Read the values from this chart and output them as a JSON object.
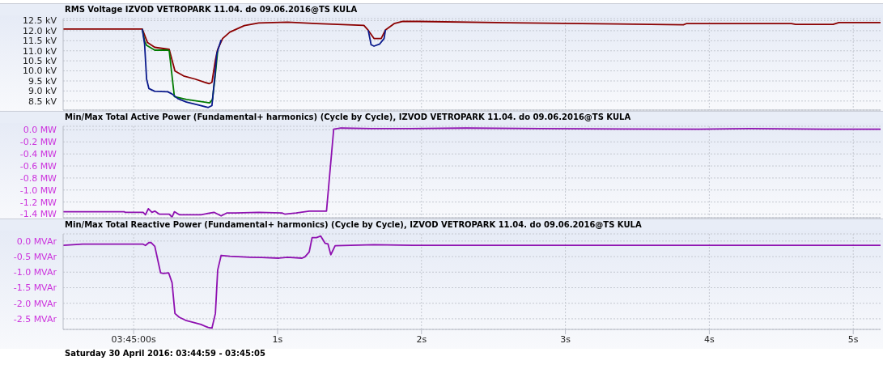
{
  "chart_data": [
    {
      "type": "line",
      "title": "RMS Voltage IZVOD VETROPARK 11.04. do 09.06.2016@TS KULA",
      "xlim": [
        -0.49,
        5.19
      ],
      "xticks": [
        0,
        1,
        2,
        3,
        4,
        5
      ],
      "ylim": [
        8.05,
        12.6
      ],
      "yticks": [
        {
          "value": 8.5,
          "label": "8.5 kV"
        },
        {
          "value": 9,
          "label": "9.0 kV"
        },
        {
          "value": 9.5,
          "label": "9.5 kV"
        },
        {
          "value": 10,
          "label": "10.0 kV"
        },
        {
          "value": 10.5,
          "label": "10.5 kV"
        },
        {
          "value": 11,
          "label": "11.0 kV"
        },
        {
          "value": 11.5,
          "label": "11.5 kV"
        },
        {
          "value": 12,
          "label": "12.0 kV"
        },
        {
          "value": 12.5,
          "label": "12.5 kV"
        }
      ],
      "grid": true,
      "tick_labels": "y",
      "series": [
        {
          "color": "#8b0000",
          "x": [
            -0.49,
            0.06,
            0.096,
            0.147,
            0.247,
            0.287,
            0.347,
            0.428,
            0.524,
            0.544,
            0.568,
            0.584,
            0.618,
            0.669,
            0.769,
            0.869,
            1.07,
            1.27,
            1.6,
            1.63,
            1.67,
            1.72,
            1.75,
            1.81,
            1.87,
            1.98,
            2.61,
            3.36,
            3.82,
            3.84,
            4.57,
            4.6,
            4.86,
            4.9,
            5.19
          ],
          "values": [
            12.08,
            12.08,
            11.41,
            11.17,
            11.07,
            9.99,
            9.75,
            9.59,
            9.36,
            9.43,
            10.53,
            11.07,
            11.61,
            11.93,
            12.25,
            12.38,
            12.42,
            12.35,
            12.26,
            12.02,
            11.61,
            11.61,
            12.04,
            12.35,
            12.46,
            12.46,
            12.39,
            12.33,
            12.29,
            12.35,
            12.35,
            12.31,
            12.31,
            12.4,
            12.4
          ]
        },
        {
          "color": "#007a00",
          "x": [
            0.06,
            0.076,
            0.09,
            0.147,
            0.237,
            0.247,
            0.283,
            0.367,
            0.528,
            0.548,
            0.568,
            0.584
          ],
          "values": [
            12.08,
            11.48,
            11.27,
            11.03,
            11.03,
            11.0,
            8.72,
            8.58,
            8.41,
            8.58,
            9.86,
            11.0
          ]
        },
        {
          "color": "#0a1a8c",
          "x": [
            0.06,
            0.076,
            0.09,
            0.106,
            0.147,
            0.237,
            0.267,
            0.307,
            0.367,
            0.448,
            0.518,
            0.544,
            0.564,
            0.578,
            0.608,
            1.1,
            1.63,
            1.65,
            1.67,
            1.71,
            1.74,
            1.75
          ],
          "values": [
            12.08,
            11.34,
            9.59,
            9.12,
            8.98,
            8.96,
            8.85,
            8.62,
            8.45,
            8.31,
            8.18,
            8.27,
            9.73,
            10.87,
            11.54,
            null,
            12.02,
            11.3,
            11.23,
            11.34,
            11.61,
            12.04
          ]
        }
      ]
    },
    {
      "type": "line",
      "title": "Min/Max Total Active Power  (Fundamental+ harmonics) (Cycle by Cycle), IZVOD VETROPARK 11.04. do 09.06.2016@TS KULA",
      "xlim": [
        -0.49,
        5.19
      ],
      "xticks": [
        0,
        1,
        2,
        3,
        4,
        5
      ],
      "ylim": [
        -1.46,
        0.06
      ],
      "yticks": [
        {
          "value": -1.4,
          "label": "-1.4 MW"
        },
        {
          "value": -1.2,
          "label": "-1.2 MW"
        },
        {
          "value": -1,
          "label": "-1.0 MW"
        },
        {
          "value": -0.8,
          "label": "-0.8 MW"
        },
        {
          "value": -0.6,
          "label": "-0.6 MW"
        },
        {
          "value": -0.4,
          "label": "-0.4 MW"
        },
        {
          "value": -0.2,
          "label": "-0.2 MW"
        },
        {
          "value": 0,
          "label": "0.0 MW"
        }
      ],
      "grid": true,
      "tick_labels": "y",
      "series": [
        {
          "color": "#8e10b0",
          "x": [
            -0.49,
            -0.064,
            -0.06,
            0.066,
            0.082,
            0.102,
            0.127,
            0.147,
            0.177,
            0.247,
            0.267,
            0.283,
            0.317,
            0.468,
            0.558,
            0.608,
            0.649,
            0.709,
            0.869,
            1.03,
            1.05,
            1.13,
            1.22,
            1.34,
            1.39,
            1.44,
            1.65,
            1.876,
            2.31,
            2.82,
            3.93,
            4.28,
            4.89,
            5.19
          ],
          "values": [
            -1.36,
            -1.36,
            -1.37,
            -1.37,
            -1.41,
            -1.31,
            -1.37,
            -1.35,
            -1.4,
            -1.4,
            -1.45,
            -1.36,
            -1.41,
            -1.41,
            -1.37,
            -1.43,
            -1.38,
            -1.38,
            -1.37,
            -1.38,
            -1.4,
            -1.38,
            -1.35,
            -1.35,
            0.01,
            0.03,
            0.02,
            0.02,
            0.03,
            0.02,
            0.01,
            0.02,
            0.01,
            0.01
          ]
        }
      ]
    },
    {
      "type": "line",
      "title": "Min/Max Total Reactive Power (Fundamental+ harmonics) (Cycle by Cycle), IZVOD VETROPARK 11.04. do 09.06.2016@TS KULA",
      "annotations": [
        "Saturday 30 April 2016: 03:44:59 - 03:45:05"
      ],
      "xlim": [
        -0.49,
        5.19
      ],
      "xticks": [
        {
          "value": 0,
          "label": "03:45:00s"
        },
        {
          "value": 1,
          "label": "1s"
        },
        {
          "value": 2,
          "label": "2s"
        },
        {
          "value": 3,
          "label": "3s"
        },
        {
          "value": 4,
          "label": "4s"
        },
        {
          "value": 5,
          "label": "5s"
        }
      ],
      "ylim": [
        -2.84,
        0.23
      ],
      "yticks": [
        {
          "value": -2.5,
          "label": "-2.5 MVAr"
        },
        {
          "value": -2,
          "label": "-2.0 MVAr"
        },
        {
          "value": -1.5,
          "label": "-1.5 MVAr"
        },
        {
          "value": -1,
          "label": "-1.0 MVAr"
        },
        {
          "value": -0.5,
          "label": "-0.5 MVAr"
        },
        {
          "value": 0,
          "label": "0.0 MVAr"
        }
      ],
      "grid": true,
      "series": [
        {
          "color": "#8e10b0",
          "x": [
            -0.49,
            -0.355,
            0.066,
            0.082,
            0.106,
            0.122,
            0.147,
            0.187,
            0.207,
            0.243,
            0.267,
            0.287,
            0.317,
            0.367,
            0.468,
            0.518,
            0.544,
            0.568,
            0.584,
            0.608,
            0.669,
            0.809,
            0.89,
            1.01,
            1.07,
            1.17,
            1.19,
            1.22,
            1.24,
            1.27,
            1.3,
            1.33,
            1.35,
            1.37,
            1.4,
            1.67,
            1.97,
            5.19
          ],
          "values": [
            -0.14,
            -0.1,
            -0.1,
            -0.14,
            -0.05,
            -0.05,
            -0.17,
            -1.02,
            -1.04,
            -1.02,
            -1.34,
            -2.33,
            -2.45,
            -2.56,
            -2.68,
            -2.78,
            -2.8,
            -2.33,
            -0.93,
            -0.46,
            -0.49,
            -0.52,
            -0.53,
            -0.55,
            -0.52,
            -0.55,
            -0.51,
            -0.35,
            0.11,
            0.11,
            0.16,
            -0.07,
            -0.09,
            -0.44,
            -0.15,
            -0.12,
            -0.14,
            -0.14
          ]
        }
      ]
    }
  ]
}
